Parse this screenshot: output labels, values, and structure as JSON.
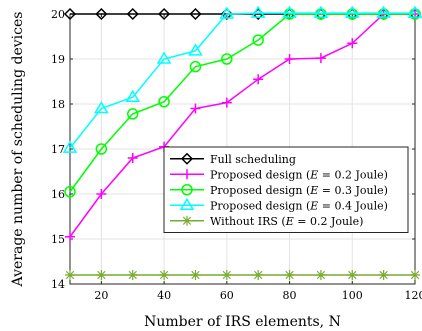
{
  "chart_data": {
    "type": "line",
    "title": "",
    "xlabel": "Number of IRS elements, N",
    "ylabel": "Average number of scheduling devices",
    "xlim": [
      10,
      120
    ],
    "ylim": [
      14,
      20
    ],
    "x_ticks": [
      20,
      40,
      60,
      80,
      100,
      120
    ],
    "y_ticks": [
      14,
      15,
      16,
      17,
      18,
      19,
      20
    ],
    "grid": true,
    "legend_position": "bottom-right",
    "x": [
      10,
      20,
      30,
      40,
      50,
      60,
      70,
      80,
      90,
      100,
      110,
      120
    ],
    "series": [
      {
        "name": "Full scheduling",
        "legend": {
          "pre": "Full scheduling",
          "var": "",
          "post": ""
        },
        "color": "#000000",
        "marker": "diamond",
        "values": [
          20,
          20,
          20,
          20,
          20,
          20,
          20,
          20,
          20,
          20,
          20,
          20
        ]
      },
      {
        "name": "Proposed design (E = 0.2 Joule)",
        "legend": {
          "pre": "Proposed design (",
          "var": "E",
          "post": " = 0.2 Joule)"
        },
        "color": "#ff00ff",
        "marker": "plus",
        "values": [
          15.05,
          16.0,
          16.8,
          17.05,
          17.9,
          18.03,
          18.55,
          19.0,
          19.02,
          19.35,
          20.0,
          20.0
        ]
      },
      {
        "name": "Proposed design (E = 0.3 Joule)",
        "legend": {
          "pre": "Proposed design (",
          "var": "E",
          "post": " = 0.3 Joule)"
        },
        "color": "#00ff00",
        "marker": "circle",
        "values": [
          16.05,
          17.0,
          17.78,
          18.05,
          18.83,
          19.0,
          19.42,
          20.0,
          20.0,
          20.0,
          20.0,
          20.0
        ]
      },
      {
        "name": "Proposed design (E = 0.4 Joule)",
        "legend": {
          "pre": "Proposed design (",
          "var": "E",
          "post": " = 0.4 Joule)"
        },
        "color": "#00ffff",
        "marker": "triangle",
        "values": [
          17.02,
          17.9,
          18.15,
          19.0,
          19.18,
          20.0,
          20.02,
          20.02,
          20.02,
          20.02,
          20.02,
          20.02
        ]
      },
      {
        "name": "Without IRS (E = 0.2 Joule)",
        "legend": {
          "pre": "Without IRS (",
          "var": "E",
          "post": " = 0.2 Joule)"
        },
        "color": "#77ac30",
        "marker": "asterisk",
        "values": [
          14.2,
          14.2,
          14.2,
          14.2,
          14.2,
          14.2,
          14.2,
          14.2,
          14.2,
          14.2,
          14.2,
          14.2
        ]
      }
    ]
  }
}
